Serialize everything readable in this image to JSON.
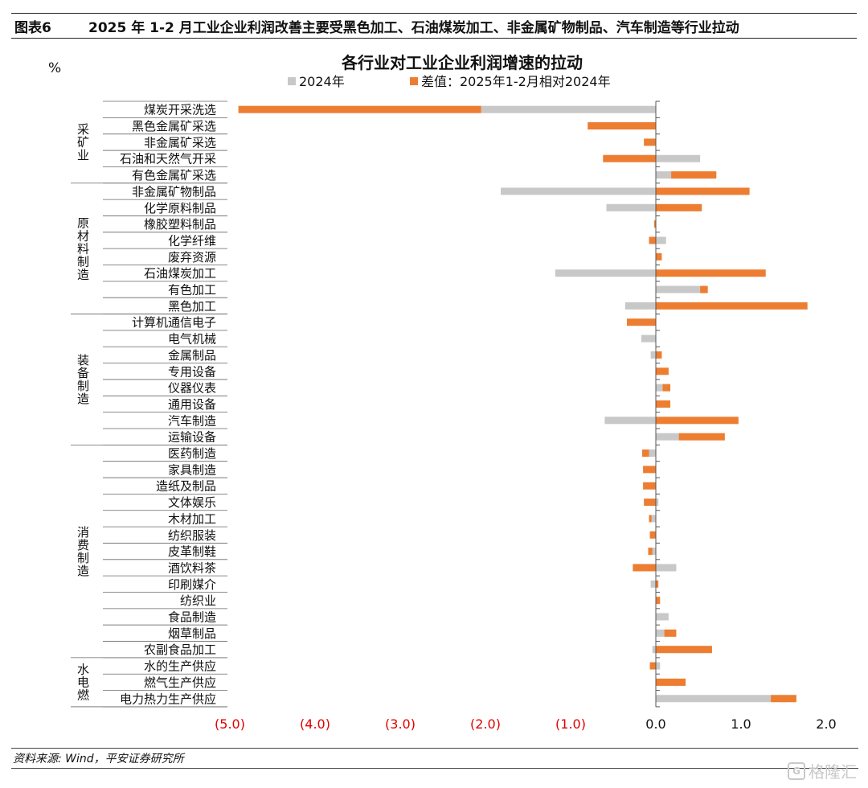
{
  "header": {
    "figure_label": "图表6",
    "title": "2025 年 1-2 月工业企业利润改善主要受黑色加工、石油煤炭加工、非金属矿物制品、汽车制造等行业拉动"
  },
  "footer": {
    "source": "资料来源: Wind，平安证券研究所"
  },
  "watermark": {
    "text": "格隆汇",
    "icon": "G"
  },
  "colors": {
    "series_2024": "#c8c8c8",
    "series_diff": "#ed7d31",
    "neg_tick": "#e00000",
    "axis": "#555555"
  },
  "chart_data": {
    "type": "bar",
    "orientation": "horizontal",
    "stacked": true,
    "title": "各行业对工业企业利润增速的拉动",
    "unit_label": "%",
    "legend_position": "top",
    "xlim": [
      -5.0,
      2.0
    ],
    "xticks": [
      -5.0,
      -4.0,
      -3.0,
      -2.0,
      -1.0,
      0.0,
      1.0,
      2.0
    ],
    "xtick_labels": [
      "(5.0)",
      "(4.0)",
      "(3.0)",
      "(2.0)",
      "(1.0)",
      "0.0",
      "1.0",
      "2.0"
    ],
    "groups": [
      {
        "name": "采矿业",
        "count": 5
      },
      {
        "name": "原材料制造",
        "count": 8
      },
      {
        "name": "装备制造",
        "count": 8
      },
      {
        "name": "消费制造",
        "count": 13
      },
      {
        "name": "水电燃",
        "count": 3
      }
    ],
    "categories": [
      "煤炭开采洗选",
      "黑色金属矿采选",
      "非金属矿采选",
      "石油和天然气开采",
      "有色金属矿采选",
      "非金属矿物制品",
      "化学原料制品",
      "橡胶塑料制品",
      "化学纤维",
      "废弃资源",
      "石油煤炭加工",
      "有色加工",
      "黑色加工",
      "计算机通信电子",
      "电气机械",
      "金属制品",
      "专用设备",
      "仪器仪表",
      "通用设备",
      "汽车制造",
      "运输设备",
      "医药制造",
      "家具制造",
      "造纸及制品",
      "文体娱乐",
      "木材加工",
      "纺织服装",
      "皮革制鞋",
      "酒饮料茶",
      "印刷媒介",
      "纺织业",
      "食品制造",
      "烟草制品",
      "农副食品加工",
      "水的生产供应",
      "燃气生产供应",
      "电力热力生产供应"
    ],
    "series": [
      {
        "name": "2024年",
        "values": [
          -2.05,
          0.0,
          0.0,
          0.52,
          0.18,
          -1.82,
          -0.58,
          0.0,
          0.12,
          0.0,
          -1.18,
          0.52,
          -0.36,
          0.0,
          -0.17,
          -0.06,
          0.0,
          0.08,
          0.0,
          -0.6,
          0.27,
          -0.08,
          0.0,
          0.0,
          0.03,
          -0.05,
          0.0,
          -0.04,
          0.24,
          -0.06,
          0.0,
          0.15,
          0.1,
          -0.04,
          0.05,
          0.0,
          1.35
        ]
      },
      {
        "name": "差值：2025年1-2月相对2024年",
        "values": [
          -2.85,
          -0.8,
          -0.14,
          -0.62,
          0.53,
          1.1,
          0.54,
          -0.02,
          -0.08,
          0.07,
          1.29,
          0.09,
          1.78,
          -0.34,
          0.0,
          0.07,
          0.15,
          0.09,
          0.17,
          0.97,
          0.54,
          -0.08,
          -0.15,
          -0.15,
          -0.14,
          -0.03,
          -0.07,
          -0.05,
          -0.27,
          0.03,
          0.05,
          0.0,
          0.14,
          0.66,
          -0.07,
          0.35,
          0.3
        ]
      }
    ]
  }
}
